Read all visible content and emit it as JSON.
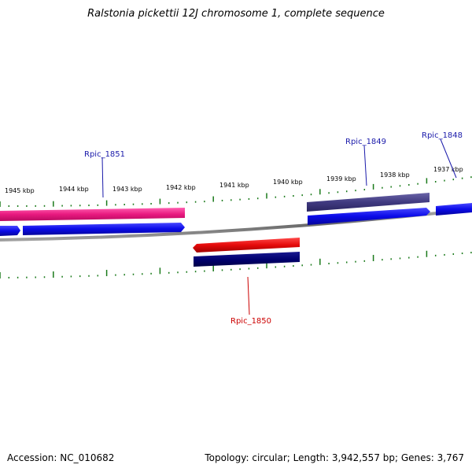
{
  "title": "Ralstonia pickettii 12J chromosome 1, complete sequence",
  "footer": {
    "accession": "Accession: NC_010682",
    "summary": "Topology: circular; Length: 3,942,557 bp; Genes: 3,767"
  },
  "colors": {
    "backbone": "#7a7a7a",
    "tick": "#1a7a1a",
    "pink_gene": "#e8197f",
    "blue_gene": "#0a0ae8",
    "purple_gene": "#403a80",
    "red_gene": "#e50a0a",
    "navy_gene": "#000070",
    "label_blue": "#1a1aaa",
    "label_red": "#cc0000"
  },
  "tick_labels": [
    {
      "kbp": 1945,
      "text": "1945 kbp"
    },
    {
      "kbp": 1944,
      "text": "1944 kbp"
    },
    {
      "kbp": 1943,
      "text": "1943 kbp"
    },
    {
      "kbp": 1942,
      "text": "1942 kbp"
    },
    {
      "kbp": 1941,
      "text": "1941 kbp"
    },
    {
      "kbp": 1940,
      "text": "1940 kbp"
    },
    {
      "kbp": 1939,
      "text": "1939 kbp"
    },
    {
      "kbp": 1938,
      "text": "1938 kbp"
    },
    {
      "kbp": 1937,
      "text": "1937 kbp"
    }
  ],
  "gene_labels": [
    {
      "name": "Rpic_1851",
      "strand": "forward"
    },
    {
      "name": "Rpic_1849",
      "strand": "forward"
    },
    {
      "name": "Rpic_1848",
      "strand": "forward"
    },
    {
      "name": "Rpic_1850",
      "strand": "reverse"
    }
  ]
}
